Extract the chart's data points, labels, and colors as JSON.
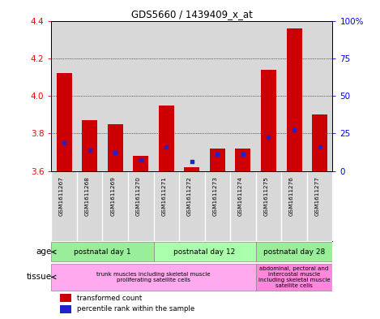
{
  "title": "GDS5660 / 1439409_x_at",
  "samples": [
    "GSM1611267",
    "GSM1611268",
    "GSM1611269",
    "GSM1611270",
    "GSM1611271",
    "GSM1611272",
    "GSM1611273",
    "GSM1611274",
    "GSM1611275",
    "GSM1611276",
    "GSM1611277"
  ],
  "red_values": [
    4.12,
    3.87,
    3.85,
    3.68,
    3.95,
    3.62,
    3.72,
    3.72,
    4.14,
    4.36,
    3.9
  ],
  "blue_values": [
    3.75,
    3.71,
    3.7,
    3.66,
    3.73,
    3.65,
    3.69,
    3.69,
    3.78,
    3.82,
    3.73
  ],
  "y_min": 3.6,
  "y_max": 4.4,
  "y_ticks": [
    3.6,
    3.8,
    4.0,
    4.2,
    4.4
  ],
  "right_ticks": [
    0,
    25,
    50,
    75,
    100
  ],
  "right_labels": [
    "0",
    "25",
    "50",
    "75",
    "100%"
  ],
  "bar_color": "#cc0000",
  "blue_color": "#2222cc",
  "bg_chart": "#d8d8d8",
  "age_groups": [
    {
      "label": "postnatal day 1",
      "start": 0,
      "end": 4
    },
    {
      "label": "postnatal day 12",
      "start": 4,
      "end": 8
    },
    {
      "label": "postnatal day 28",
      "start": 8,
      "end": 11
    }
  ],
  "tissue_groups": [
    {
      "label": "trunk muscles including skeletal muscle\nproliferating satellite cells",
      "start": 0,
      "end": 8
    },
    {
      "label": "abdominal, pectoral and\nintercostal muscle\nincluding skeletal muscle\nsatellite cells",
      "start": 8,
      "end": 11
    }
  ],
  "legend_red": "transformed count",
  "legend_blue": "percentile rank within the sample",
  "xlabel_age": "age",
  "xlabel_tissue": "tissue"
}
